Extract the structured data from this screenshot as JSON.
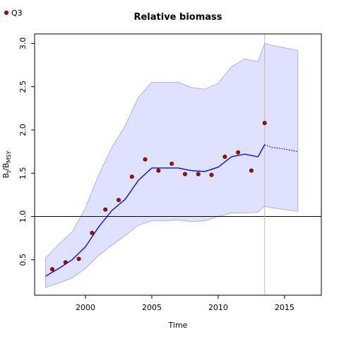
{
  "chart_data": {
    "type": "line",
    "title": "Relative biomass",
    "xlabel": "Time",
    "ylabel": [
      "B",
      "t",
      "/B",
      "MSY"
    ],
    "x": [
      1997,
      1998,
      1999,
      2000,
      2001,
      2002,
      2003,
      2004,
      2005,
      2006,
      2007,
      2008,
      2009,
      2010,
      2011,
      2012,
      2013,
      2013.5,
      2014,
      2015,
      2016
    ],
    "upper": [
      0.52,
      0.68,
      0.82,
      1.1,
      1.48,
      1.8,
      2.05,
      2.38,
      2.55,
      2.55,
      2.55,
      2.49,
      2.47,
      2.54,
      2.73,
      2.82,
      2.79,
      3.0,
      2.98,
      2.95,
      2.92
    ],
    "lower": [
      0.18,
      0.23,
      0.29,
      0.4,
      0.55,
      0.67,
      0.78,
      0.9,
      0.95,
      0.95,
      0.96,
      0.94,
      0.95,
      1.0,
      1.04,
      1.04,
      1.05,
      1.12,
      1.1,
      1.08,
      1.06
    ],
    "fit": [
      0.31,
      0.4,
      0.5,
      0.65,
      0.88,
      1.07,
      1.2,
      1.42,
      1.56,
      1.56,
      1.56,
      1.53,
      1.52,
      1.57,
      1.69,
      1.72,
      1.69,
      1.83,
      null,
      null,
      null
    ],
    "projection": [
      null,
      null,
      null,
      null,
      null,
      null,
      null,
      null,
      null,
      null,
      null,
      null,
      null,
      null,
      null,
      null,
      null,
      1.83,
      1.8,
      1.78,
      1.75
    ],
    "band_color": "#e0e0ff",
    "band_edge": "#b0b0e0",
    "line_color": "#0000cc",
    "points": {
      "name": "Q3",
      "color": "#cc0000",
      "x": [
        1997.5,
        1998.5,
        1999.5,
        2000.5,
        2001.5,
        2002.5,
        2003.5,
        2004.5,
        2005.5,
        2006.5,
        2007.5,
        2008.5,
        2009.5,
        2010.5,
        2011.5,
        2012.5,
        2013.5
      ],
      "values": [
        0.39,
        0.47,
        0.51,
        0.81,
        1.08,
        1.19,
        1.46,
        1.66,
        1.53,
        1.61,
        1.49,
        1.49,
        1.48,
        1.69,
        1.74,
        1.53,
        2.08
      ]
    },
    "hline": 1,
    "vline": 2013.5,
    "xlim": [
      1996.17,
      2017.77
    ],
    "ylim": [
      0.09,
      3.11
    ],
    "xticks": [
      2000,
      2005,
      2010,
      2015
    ],
    "yticks": [
      0.5,
      {
        "value": 1,
        "label": "1.0"
      },
      1.5,
      {
        "value": 2,
        "label": "2.0"
      },
      2.5,
      {
        "value": 3,
        "label": "3.0"
      }
    ]
  }
}
